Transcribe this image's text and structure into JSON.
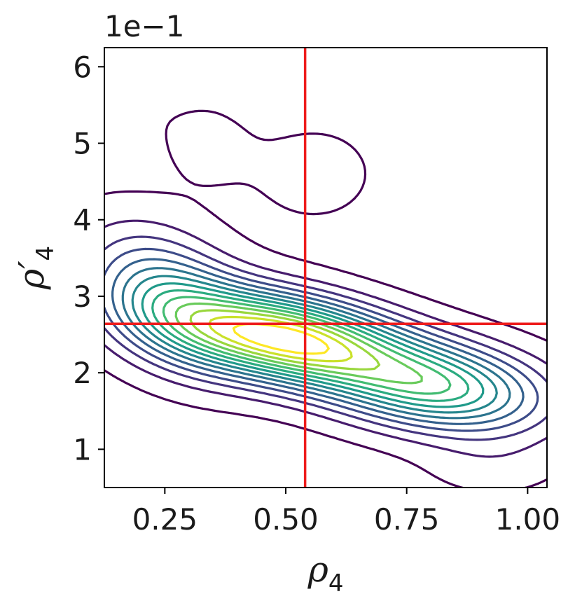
{
  "chart_data": {
    "type": "contour",
    "xlabel": "ρ",
    "xlabel_sub": "4",
    "ylabel": "ρ′",
    "ylabel_sub": "4",
    "y_offset_label": "1e−1",
    "xlim": [
      0.125,
      1.04
    ],
    "ylim": [
      0.5,
      6.25
    ],
    "xticks": [
      0.25,
      0.5,
      0.75,
      1.0
    ],
    "xtick_labels": [
      "0.25",
      "0.50",
      "0.75",
      "1.00"
    ],
    "yticks": [
      1,
      2,
      3,
      4,
      5,
      6
    ],
    "ytick_labels": [
      "1",
      "2",
      "3",
      "4",
      "5",
      "6"
    ],
    "colormap": "viridis",
    "reference_lines": {
      "color": "#ee1c1c",
      "vertical_x": 0.54,
      "horizontal_y": 2.64
    },
    "density": {
      "components": [
        {
          "mx": 0.5,
          "my": 2.45,
          "sx": 0.17,
          "sy": 0.42,
          "rho": -0.4,
          "w": 1.0
        },
        {
          "mx": 0.82,
          "my": 1.8,
          "sx": 0.15,
          "sy": 0.4,
          "rho": -0.25,
          "w": 0.6
        },
        {
          "mx": 0.25,
          "my": 3.0,
          "sx": 0.11,
          "sy": 0.6,
          "rho": -0.35,
          "w": 0.4
        },
        {
          "mx": 0.33,
          "my": 5.0,
          "sx": 0.07,
          "sy": 0.45,
          "rho": 0.0,
          "w": 0.045
        },
        {
          "mx": 0.56,
          "my": 4.6,
          "sx": 0.11,
          "sy": 0.55,
          "rho": 0.0,
          "w": 0.05
        },
        {
          "mx": 0.18,
          "my": 5.7,
          "sx": 0.06,
          "sy": 0.5,
          "rho": 0.0,
          "w": 0.03
        },
        {
          "mx": 0.93,
          "my": 0.8,
          "sx": 0.1,
          "sy": 0.3,
          "rho": 0.0,
          "w": 0.06
        }
      ],
      "levels": 14
    }
  }
}
